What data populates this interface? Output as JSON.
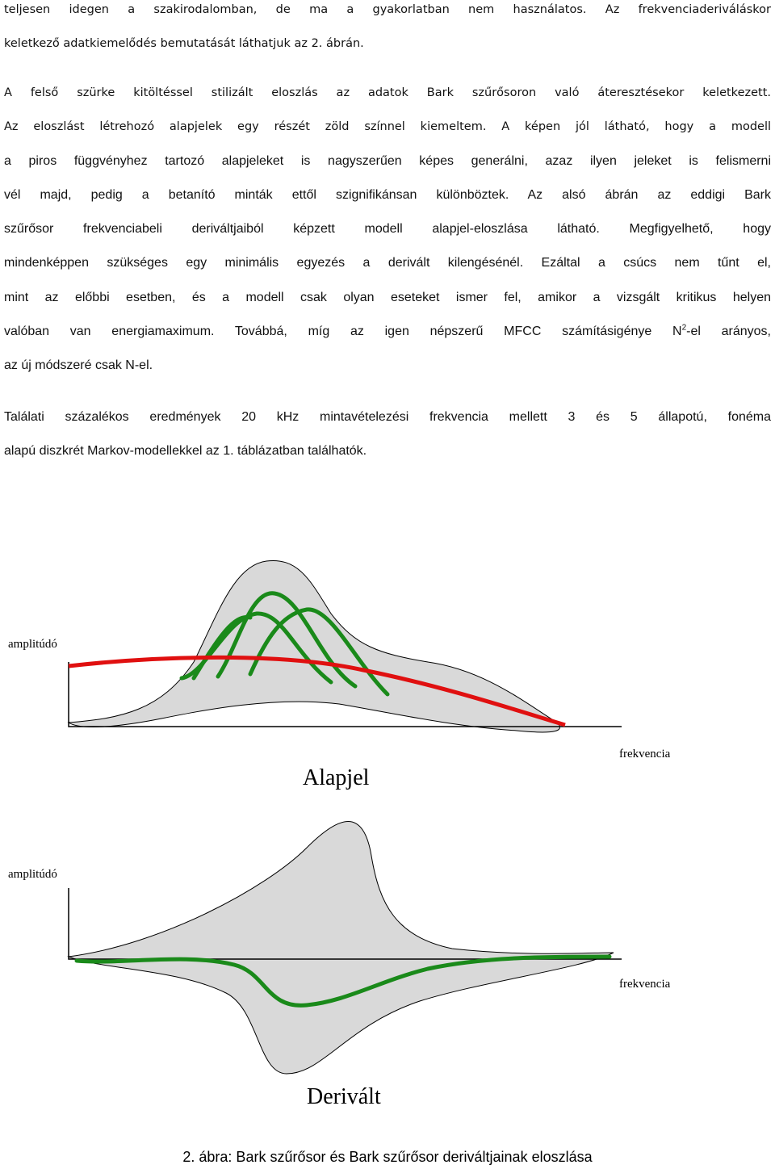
{
  "paragraphs": [
    {
      "lines": [
        "teljesen idegen a szakirodalomban, de ma a gyakorlatban nem használatos. Az frekvenciaderiváláskor",
        "keletkező adatkiemelődés bemutatását láthatjuk az 2. ábrán."
      ]
    },
    {
      "lines": [
        "A felső szürke kitöltéssel stilizált eloszlás az adatok Bark szűrősoron való áteresztésekor keletkezett.",
        "Az eloszlást létrehozó alapjelek egy részét zöld színnel kiemeltem. A képen jól látható, hogy a modell",
        "a piros függvényhez tartozó alapjeleket is nagyszerűen képes generálni, azaz ilyen jeleket is felismerni",
        "vél majd, pedig a betanító minták ettől szignifikánsan különböztek. Az alsó ábrán az eddigi Bark",
        "szűrősor frekvenciabeli deriváltjaiból képzett modell alapjel-eloszlása látható. Megfigyelhető, hogy",
        "mindenképpen szükséges egy minimális egyezés a derivált kilengésénél. Ezáltal a csúcs nem tűnt el,",
        "mint az előbbi esetben, és a modell csak olyan eseteket ismer fel, amikor a vizsgált kritikus helyen",
        [
          "valóban van energiamaximum. Továbbá, míg az  igen népszerű MFCC számításigénye N",
          "2",
          "-el arányos,"
        ],
        "az új módszeré csak N-el."
      ]
    },
    {
      "lines": [
        "Találati százalékos eredmények 20 kHz mintavételezési frekvencia mellett 3 és 5 állapotú, fonéma",
        "alapú diszkrét Markov-modellekkel  az 1. táblázatban találhatók."
      ]
    }
  ],
  "figure": {
    "top": {
      "y_label": "amplitúdó",
      "x_label": "frekvencia",
      "title": "Alapjel"
    },
    "bottom": {
      "y_label": "amplitúdó",
      "x_label": "frekvencia",
      "title": "Derivált"
    },
    "caption": "2. ábra: Bark szűrősor és Bark szűrősor deriváltjainak eloszlása"
  }
}
